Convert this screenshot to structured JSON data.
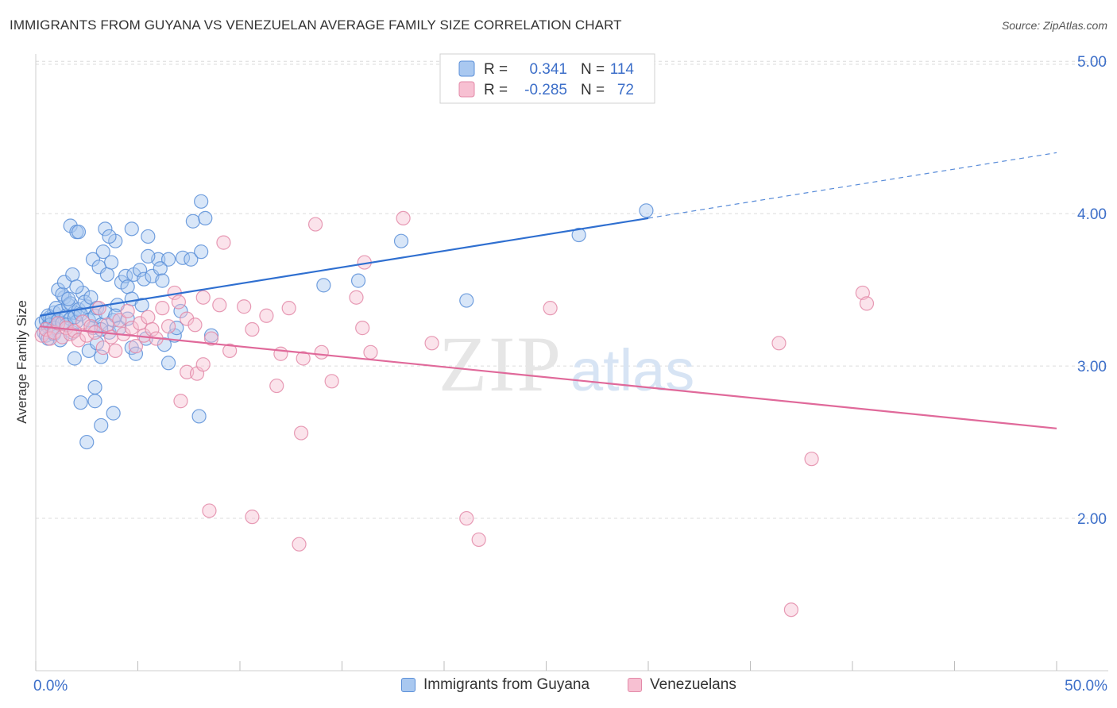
{
  "title": "IMMIGRANTS FROM GUYANA VS VENEZUELAN AVERAGE FAMILY SIZE CORRELATION CHART",
  "source": "Source: ZipAtlas.com",
  "watermark": {
    "zip": "ZIP",
    "atlas": "atlas"
  },
  "colors": {
    "blue_fill": "#a9c8f0",
    "blue_stroke": "#5b8fd8",
    "blue_line": "#2f6fd0",
    "pink_fill": "#f7c0d2",
    "pink_stroke": "#e38aa8",
    "pink_line": "#e0699a",
    "axis_value": "#3d6fc9",
    "grid": "#dcdcdc"
  },
  "legend_top": {
    "r_label": "R =",
    "n_label": "N =",
    "rows": [
      {
        "r": "0.341",
        "n": "114",
        "series": "blue"
      },
      {
        "r": "-0.285",
        "n": "72",
        "series": "pink"
      }
    ]
  },
  "legend_bottom": [
    {
      "label": "Immigrants from Guyana",
      "series": "blue"
    },
    {
      "label": "Venezuelans",
      "series": "pink"
    }
  ],
  "chart_data": {
    "type": "scatter",
    "title": "IMMIGRANTS FROM GUYANA VS VENEZUELAN AVERAGE FAMILY SIZE CORRELATION CHART",
    "xlabel": "",
    "ylabel": "Average Family Size",
    "xlim": [
      0,
      50
    ],
    "ylim": [
      1.0,
      5.1
    ],
    "x_tick_labels": [
      "0.0%",
      "50.0%"
    ],
    "y_ticks": [
      2.0,
      3.0,
      4.0,
      5.0
    ],
    "y_tick_labels": [
      "2.00",
      "3.00",
      "4.00",
      "5.00"
    ],
    "grid": true,
    "series": [
      {
        "name": "Immigrants from Guyana",
        "color": "blue",
        "r": 0.341,
        "n": 114,
        "trend": {
          "x0": 0.2,
          "y0": 3.33,
          "x1": 30.0,
          "y1": 3.97,
          "dash_x1": 50.0,
          "dash_y1": 4.4
        },
        "points": [
          [
            0.3,
            3.28
          ],
          [
            0.4,
            3.22
          ],
          [
            0.5,
            3.3
          ],
          [
            0.6,
            3.26
          ],
          [
            0.7,
            3.32
          ],
          [
            0.8,
            3.24
          ],
          [
            0.9,
            3.35
          ],
          [
            1.0,
            3.29
          ],
          [
            0.5,
            3.2
          ],
          [
            0.6,
            3.33
          ],
          [
            0.7,
            3.27
          ],
          [
            0.8,
            3.31
          ],
          [
            0.9,
            3.25
          ],
          [
            1.0,
            3.38
          ],
          [
            1.1,
            3.3
          ],
          [
            1.2,
            3.36
          ],
          [
            1.3,
            3.28
          ],
          [
            1.4,
            3.45
          ],
          [
            1.5,
            3.33
          ],
          [
            1.6,
            3.4
          ],
          [
            1.7,
            3.31
          ],
          [
            1.8,
            3.22
          ],
          [
            1.9,
            3.35
          ],
          [
            2.0,
            3.29
          ],
          [
            1.1,
            3.5
          ],
          [
            1.3,
            3.47
          ],
          [
            1.5,
            3.27
          ],
          [
            1.7,
            3.41
          ],
          [
            1.9,
            3.32
          ],
          [
            2.1,
            3.37
          ],
          [
            2.3,
            3.48
          ],
          [
            2.5,
            3.39
          ],
          [
            1.4,
            3.55
          ],
          [
            1.6,
            3.44
          ],
          [
            1.8,
            3.6
          ],
          [
            2.0,
            3.52
          ],
          [
            2.2,
            3.34
          ],
          [
            2.4,
            3.42
          ],
          [
            2.6,
            3.3
          ],
          [
            2.8,
            3.25
          ],
          [
            2.7,
            3.45
          ],
          [
            2.9,
            3.33
          ],
          [
            3.0,
            3.38
          ],
          [
            3.2,
            3.27
          ],
          [
            3.4,
            3.35
          ],
          [
            3.6,
            3.22
          ],
          [
            3.8,
            3.3
          ],
          [
            4.0,
            3.4
          ],
          [
            2.8,
            3.7
          ],
          [
            3.1,
            3.65
          ],
          [
            3.3,
            3.75
          ],
          [
            3.5,
            3.6
          ],
          [
            3.7,
            3.68
          ],
          [
            3.9,
            3.82
          ],
          [
            4.2,
            3.55
          ],
          [
            4.4,
            3.59
          ],
          [
            1.7,
            3.92
          ],
          [
            2.0,
            3.88
          ],
          [
            2.1,
            3.88
          ],
          [
            3.4,
            3.9
          ],
          [
            3.6,
            3.85
          ],
          [
            4.7,
            3.9
          ],
          [
            5.5,
            3.85
          ],
          [
            4.5,
            3.52
          ],
          [
            4.8,
            3.6
          ],
          [
            5.1,
            3.63
          ],
          [
            5.3,
            3.57
          ],
          [
            5.7,
            3.59
          ],
          [
            6.0,
            3.7
          ],
          [
            6.5,
            3.7
          ],
          [
            7.2,
            3.71
          ],
          [
            7.6,
            3.7
          ],
          [
            8.1,
            3.75
          ],
          [
            7.7,
            3.95
          ],
          [
            8.3,
            3.97
          ],
          [
            8.1,
            4.08
          ],
          [
            5.5,
            3.72
          ],
          [
            6.1,
            3.64
          ],
          [
            6.2,
            3.56
          ],
          [
            4.7,
            3.44
          ],
          [
            5.2,
            3.4
          ],
          [
            3.9,
            3.33
          ],
          [
            4.1,
            3.25
          ],
          [
            4.5,
            3.31
          ],
          [
            4.7,
            3.12
          ],
          [
            4.9,
            3.08
          ],
          [
            3.2,
            3.24
          ],
          [
            5.4,
            3.18
          ],
          [
            6.3,
            3.14
          ],
          [
            6.5,
            3.02
          ],
          [
            6.8,
            3.2
          ],
          [
            6.9,
            3.25
          ],
          [
            7.1,
            3.36
          ],
          [
            8.6,
            3.2
          ],
          [
            1.9,
            3.05
          ],
          [
            3.2,
            3.06
          ],
          [
            2.9,
            2.86
          ],
          [
            2.9,
            2.77
          ],
          [
            2.2,
            2.76
          ],
          [
            3.8,
            2.69
          ],
          [
            3.2,
            2.61
          ],
          [
            2.5,
            2.5
          ],
          [
            8.0,
            2.67
          ],
          [
            14.1,
            3.53
          ],
          [
            15.8,
            3.56
          ],
          [
            17.9,
            3.82
          ],
          [
            21.1,
            3.43
          ],
          [
            26.6,
            3.86
          ],
          [
            29.9,
            4.02
          ],
          [
            0.6,
            3.18
          ],
          [
            0.9,
            3.21
          ],
          [
            1.2,
            3.17
          ],
          [
            2.6,
            3.1
          ],
          [
            3.0,
            3.15
          ]
        ]
      },
      {
        "name": "Venezuelans",
        "color": "pink",
        "r": -0.285,
        "n": 72,
        "trend": {
          "x0": 0.2,
          "y0": 3.26,
          "x1": 50.0,
          "y1": 2.59
        },
        "points": [
          [
            0.3,
            3.2
          ],
          [
            0.5,
            3.24
          ],
          [
            0.7,
            3.18
          ],
          [
            0.9,
            3.22
          ],
          [
            1.1,
            3.28
          ],
          [
            1.3,
            3.19
          ],
          [
            1.5,
            3.25
          ],
          [
            1.7,
            3.21
          ],
          [
            1.9,
            3.23
          ],
          [
            2.1,
            3.17
          ],
          [
            2.3,
            3.29
          ],
          [
            2.5,
            3.2
          ],
          [
            2.7,
            3.26
          ],
          [
            2.9,
            3.22
          ],
          [
            3.1,
            3.38
          ],
          [
            3.3,
            3.12
          ],
          [
            3.5,
            3.27
          ],
          [
            3.7,
            3.19
          ],
          [
            3.9,
            3.1
          ],
          [
            4.1,
            3.3
          ],
          [
            4.3,
            3.21
          ],
          [
            4.5,
            3.36
          ],
          [
            4.7,
            3.25
          ],
          [
            4.9,
            3.13
          ],
          [
            5.1,
            3.28
          ],
          [
            5.3,
            3.2
          ],
          [
            5.5,
            3.32
          ],
          [
            5.7,
            3.24
          ],
          [
            5.9,
            3.18
          ],
          [
            6.2,
            3.38
          ],
          [
            6.5,
            3.26
          ],
          [
            6.8,
            3.48
          ],
          [
            7.0,
            3.42
          ],
          [
            7.4,
            3.31
          ],
          [
            7.8,
            3.27
          ],
          [
            8.2,
            3.45
          ],
          [
            8.6,
            3.18
          ],
          [
            9.0,
            3.4
          ],
          [
            9.5,
            3.1
          ],
          [
            10.2,
            3.39
          ],
          [
            10.6,
            3.24
          ],
          [
            11.3,
            3.33
          ],
          [
            12.0,
            3.08
          ],
          [
            12.4,
            3.38
          ],
          [
            13.1,
            3.05
          ],
          [
            14.0,
            3.09
          ],
          [
            15.7,
            3.45
          ],
          [
            16.0,
            3.25
          ],
          [
            16.1,
            3.68
          ],
          [
            16.4,
            3.09
          ],
          [
            18.0,
            3.97
          ],
          [
            13.7,
            3.93
          ],
          [
            9.2,
            3.81
          ],
          [
            19.4,
            3.15
          ],
          [
            25.2,
            3.38
          ],
          [
            36.4,
            3.15
          ],
          [
            40.5,
            3.48
          ],
          [
            40.7,
            3.41
          ],
          [
            7.1,
            2.77
          ],
          [
            7.4,
            2.96
          ],
          [
            7.9,
            2.95
          ],
          [
            8.2,
            3.01
          ],
          [
            11.8,
            2.87
          ],
          [
            14.5,
            2.9
          ],
          [
            13.0,
            2.56
          ],
          [
            8.5,
            2.05
          ],
          [
            10.6,
            2.01
          ],
          [
            12.9,
            1.83
          ],
          [
            21.1,
            2.0
          ],
          [
            21.7,
            1.86
          ],
          [
            38.0,
            2.39
          ],
          [
            37.0,
            1.4
          ]
        ]
      }
    ]
  }
}
